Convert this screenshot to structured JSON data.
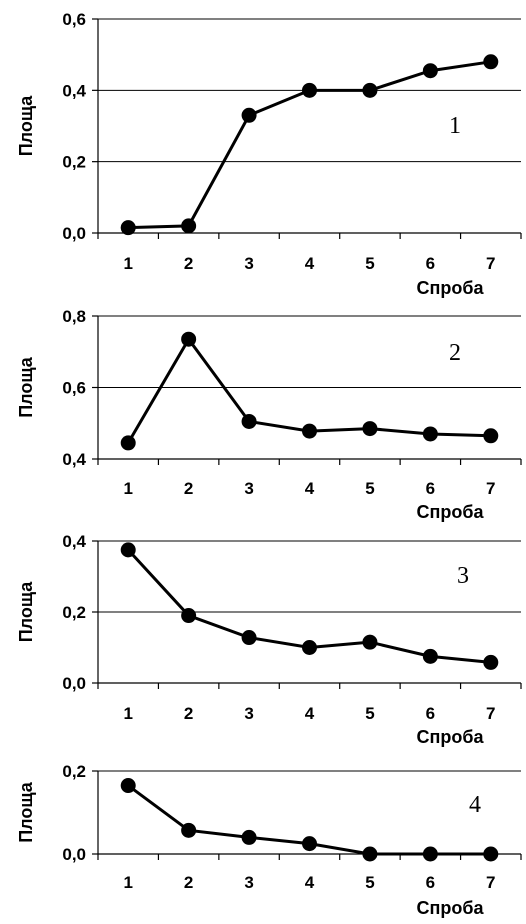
{
  "chart_data": [
    {
      "type": "line",
      "panel_label": "1",
      "xlabel": "Спроба",
      "ylabel": "Площа",
      "categories": [
        "1",
        "2",
        "3",
        "4",
        "5",
        "6",
        "7"
      ],
      "values": [
        0.015,
        0.02,
        0.33,
        0.4,
        0.4,
        0.455,
        0.48
      ],
      "ylim": [
        0.0,
        0.6
      ],
      "yticks": [
        "0,0",
        "0,2",
        "0,4",
        "0,6"
      ],
      "ytick_values": [
        0.0,
        0.2,
        0.4,
        0.6
      ],
      "grid": true,
      "line_color": "#000000"
    },
    {
      "type": "line",
      "panel_label": "2",
      "xlabel": "Спроба",
      "ylabel": "Площа",
      "categories": [
        "1",
        "2",
        "3",
        "4",
        "5",
        "6",
        "7"
      ],
      "values": [
        0.445,
        0.735,
        0.505,
        0.478,
        0.485,
        0.47,
        0.465
      ],
      "ylim": [
        0.4,
        0.8
      ],
      "yticks": [
        "0,4",
        "0,6",
        "0,8"
      ],
      "ytick_values": [
        0.4,
        0.6,
        0.8
      ],
      "grid": true,
      "line_color": "#000000"
    },
    {
      "type": "line",
      "panel_label": "3",
      "xlabel": "Спроба",
      "ylabel": "Площа",
      "categories": [
        "1",
        "2",
        "3",
        "4",
        "5",
        "6",
        "7"
      ],
      "values": [
        0.375,
        0.19,
        0.128,
        0.1,
        0.115,
        0.075,
        0.058
      ],
      "ylim": [
        0.0,
        0.4
      ],
      "yticks": [
        "0,0",
        "0,2",
        "0,4"
      ],
      "ytick_values": [
        0.0,
        0.2,
        0.4
      ],
      "grid": true,
      "line_color": "#000000"
    },
    {
      "type": "line",
      "panel_label": "4",
      "xlabel": "Спроба",
      "ylabel": "Площа",
      "categories": [
        "1",
        "2",
        "3",
        "4",
        "5",
        "6",
        "7"
      ],
      "values": [
        0.165,
        0.057,
        0.04,
        0.025,
        0.0,
        0.0,
        0.0
      ],
      "ylim": [
        0.0,
        0.2
      ],
      "yticks": [
        "0,0",
        "0,2"
      ],
      "ytick_values": [
        0.0,
        0.2
      ],
      "grid": true,
      "line_color": "#000000"
    }
  ]
}
